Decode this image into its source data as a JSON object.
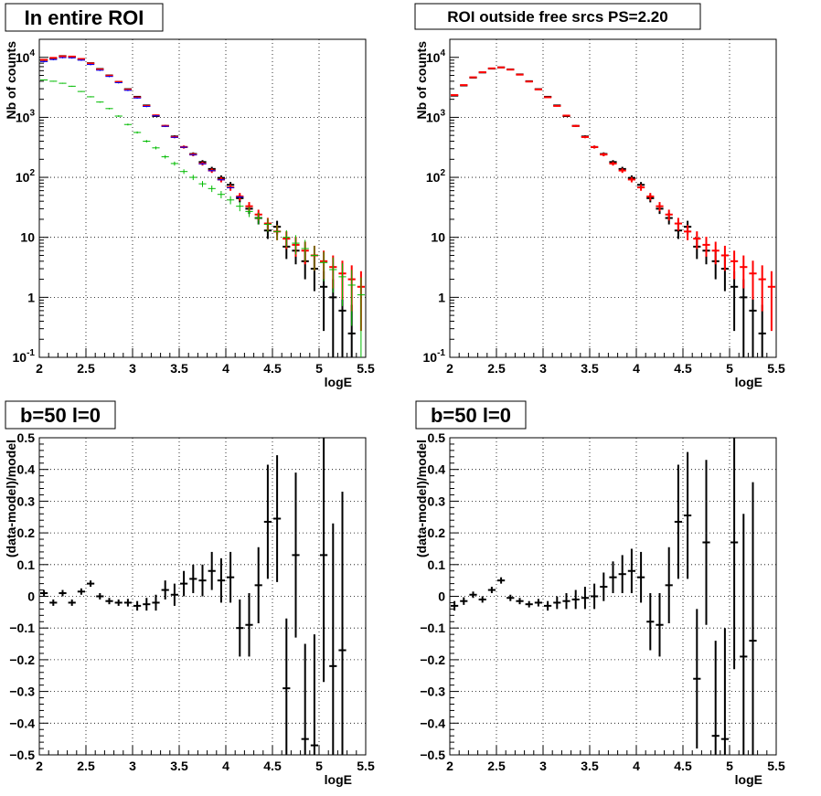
{
  "canvas": {
    "background": "#ffffff"
  },
  "colors": {
    "data": "#000000",
    "model_total": "#ff0000",
    "model_blue": "#0000ff",
    "model_green": "#00bb00"
  },
  "chart_data": [
    {
      "type": "histogram-errorbars",
      "title": "In entire ROI",
      "xlabel": "logE",
      "ylabel": "Nb of counts",
      "xlim": [
        2,
        5.5
      ],
      "ylim": [
        0.1,
        20000
      ],
      "yscale": "log",
      "grid": true,
      "xticks": [
        2,
        2.5,
        3,
        3.5,
        4,
        4.5,
        5,
        5.5
      ],
      "xtick_labels": [
        "2",
        "2.5",
        "3",
        "3.5",
        "4",
        "4.5",
        "5",
        "5.5"
      ],
      "yticks": [
        0.1,
        1,
        10,
        100,
        1000,
        10000
      ],
      "ytick_labels": [
        "10^-1",
        "1",
        "10",
        "10^2",
        "10^3",
        "10^4"
      ],
      "bin_width": 0.1,
      "series": [
        {
          "role": "data",
          "color": "#000000",
          "err_style": "poisson",
          "band": false,
          "x": [
            2.05,
            2.15,
            2.25,
            2.35,
            2.45,
            2.55,
            2.65,
            2.75,
            2.85,
            2.95,
            3.05,
            3.15,
            3.25,
            3.35,
            3.45,
            3.55,
            3.65,
            3.75,
            3.85,
            3.95,
            4.05,
            4.15,
            4.25,
            4.35,
            4.45,
            4.55,
            4.65,
            4.75,
            4.85,
            4.95,
            5.05,
            5.15,
            5.25,
            5.35
          ],
          "y": [
            9000,
            9600,
            10500,
            10200,
            9200,
            8000,
            6400,
            5000,
            3900,
            2950,
            2200,
            1580,
            1050,
            720,
            480,
            320,
            245,
            180,
            138,
            98,
            75,
            45,
            30,
            21,
            13,
            15,
            7,
            6,
            4,
            3,
            1.5,
            1,
            0.6,
            0.25
          ]
        },
        {
          "role": "model-total",
          "color": "#ff0000",
          "err_style": "poisson",
          "band": false,
          "x": [
            2.05,
            2.15,
            2.25,
            2.35,
            2.45,
            2.55,
            2.65,
            2.75,
            2.85,
            2.95,
            3.05,
            3.15,
            3.25,
            3.35,
            3.45,
            3.55,
            3.65,
            3.75,
            3.85,
            3.95,
            4.05,
            4.15,
            4.25,
            4.35,
            4.45,
            4.55,
            4.65,
            4.75,
            4.85,
            4.95,
            5.05,
            5.15,
            5.25,
            5.35,
            5.45
          ],
          "y": [
            9100,
            9800,
            10400,
            10300,
            9400,
            7900,
            6300,
            4950,
            3900,
            2900,
            2150,
            1550,
            1080,
            720,
            470,
            320,
            240,
            170,
            130,
            92,
            68,
            48,
            33,
            24,
            17,
            12.5,
            9.5,
            7.5,
            6,
            5,
            4,
            3.2,
            2.5,
            2,
            1.5
          ]
        },
        {
          "role": "model-blue",
          "color": "#0000ff",
          "err_style": "band",
          "band": true,
          "x": [
            2.05,
            2.15,
            2.25,
            2.35,
            2.45,
            2.55,
            2.65,
            2.75,
            2.85,
            2.95,
            3.05,
            3.15,
            3.25,
            3.35,
            3.45,
            3.55,
            3.65,
            3.75,
            3.85,
            3.95,
            4.05,
            4.15
          ],
          "y": [
            8500,
            9200,
            9900,
            9800,
            9000,
            7600,
            6100,
            4800,
            3780,
            2820,
            2100,
            1520,
            1060,
            710,
            465,
            318,
            238,
            168,
            129,
            91,
            67,
            47
          ]
        },
        {
          "role": "model-green",
          "color": "#00bb00",
          "err_style": "poisson",
          "band": false,
          "x": [
            2.05,
            2.15,
            2.25,
            2.35,
            2.45,
            2.55,
            2.65,
            2.75,
            2.85,
            2.95,
            3.05,
            3.15,
            3.25,
            3.35,
            3.45,
            3.55,
            3.65,
            3.75,
            3.85,
            3.95,
            4.05,
            4.15,
            4.25,
            4.35,
            4.45,
            4.55,
            4.65,
            4.75,
            4.85,
            4.95,
            5.05,
            5.15,
            5.25,
            5.35,
            5.45
          ],
          "y": [
            4200,
            4000,
            3700,
            3300,
            2700,
            2200,
            1800,
            1400,
            1050,
            760,
            560,
            400,
            310,
            220,
            170,
            125,
            100,
            78,
            65,
            52,
            42,
            33,
            27,
            21,
            16.5,
            12.5,
            10,
            8,
            6.5,
            5,
            3.8,
            2.9,
            2.2,
            1.6,
            1.1
          ]
        }
      ]
    },
    {
      "type": "histogram-errorbars",
      "title": "ROI outside free srcs PS=2.20",
      "xlabel": "logE",
      "ylabel": "Nb of counts",
      "xlim": [
        2,
        5.5
      ],
      "ylim": [
        0.1,
        20000
      ],
      "yscale": "log",
      "grid": true,
      "xticks": [
        2,
        2.5,
        3,
        3.5,
        4,
        4.5,
        5,
        5.5
      ],
      "xtick_labels": [
        "2",
        "2.5",
        "3",
        "3.5",
        "4",
        "4.5",
        "5",
        "5.5"
      ],
      "yticks": [
        0.1,
        1,
        10,
        100,
        1000,
        10000
      ],
      "ytick_labels": [
        "10^-1",
        "1",
        "10",
        "10^2",
        "10^3",
        "10^4"
      ],
      "bin_width": 0.1,
      "series": [
        {
          "role": "data",
          "color": "#000000",
          "err_style": "poisson",
          "band": false,
          "x": [
            2.05,
            2.15,
            2.25,
            2.35,
            2.45,
            2.55,
            2.65,
            2.75,
            2.85,
            2.95,
            3.05,
            3.15,
            3.25,
            3.35,
            3.45,
            3.55,
            3.65,
            3.75,
            3.85,
            3.95,
            4.05,
            4.15,
            4.25,
            4.35,
            4.45,
            4.55,
            4.65,
            4.75,
            4.85,
            4.95,
            5.05,
            5.15,
            5.25,
            5.35
          ],
          "y": [
            2300,
            3400,
            4600,
            5600,
            6500,
            6800,
            6300,
            5200,
            4000,
            2950,
            2200,
            1580,
            1050,
            720,
            480,
            320,
            245,
            180,
            138,
            98,
            75,
            45,
            30,
            21,
            13,
            15,
            7,
            6,
            4,
            3,
            1.5,
            1,
            0.6,
            0.25
          ]
        },
        {
          "role": "model-total",
          "color": "#ff0000",
          "err_style": "poisson",
          "band": false,
          "x": [
            2.05,
            2.15,
            2.25,
            2.35,
            2.45,
            2.55,
            2.65,
            2.75,
            2.85,
            2.95,
            3.05,
            3.15,
            3.25,
            3.35,
            3.45,
            3.55,
            3.65,
            3.75,
            3.85,
            3.95,
            4.05,
            4.15,
            4.25,
            4.35,
            4.45,
            4.55,
            4.65,
            4.75,
            4.85,
            4.95,
            5.05,
            5.15,
            5.25,
            5.35,
            5.45
          ],
          "y": [
            2350,
            3450,
            4650,
            5650,
            6550,
            6800,
            6250,
            5150,
            3950,
            2920,
            2160,
            1550,
            1070,
            720,
            470,
            320,
            240,
            170,
            130,
            92,
            68,
            48,
            33,
            24,
            17,
            12.5,
            9.5,
            7.5,
            6,
            5,
            4,
            3.2,
            2.5,
            2,
            1.5
          ]
        }
      ]
    },
    {
      "type": "histogram-errorbars",
      "title": "b=50 l=0",
      "xlabel": "logE",
      "ylabel": "(data-model)/model",
      "xlim": [
        2,
        5.5
      ],
      "ylim": [
        -0.5,
        0.5
      ],
      "yscale": "linear",
      "grid": true,
      "xticks": [
        2,
        2.5,
        3,
        3.5,
        4,
        4.5,
        5,
        5.5
      ],
      "xtick_labels": [
        "2",
        "2.5",
        "3",
        "3.5",
        "4",
        "4.5",
        "5",
        "5.5"
      ],
      "yticks": [
        -0.5,
        -0.4,
        -0.3,
        -0.2,
        -0.1,
        0,
        0.1,
        0.2,
        0.3,
        0.4,
        0.5
      ],
      "ytick_labels": [
        "−0.5",
        "−0.4",
        "−0.3",
        "−0.2",
        "−0.1",
        "0",
        "0.1",
        "0.2",
        "0.3",
        "0.4",
        "0.5"
      ],
      "bin_width": 0.1,
      "series": [
        {
          "role": "data",
          "color": "#000000",
          "x": [
            2.05,
            2.15,
            2.25,
            2.35,
            2.45,
            2.55,
            2.65,
            2.75,
            2.85,
            2.95,
            3.05,
            3.15,
            3.25,
            3.35,
            3.45,
            3.55,
            3.65,
            3.75,
            3.85,
            3.95,
            4.05,
            4.15,
            4.25,
            4.35,
            4.45,
            4.55,
            4.65,
            4.75,
            4.85,
            4.95,
            5.05,
            5.15,
            5.25
          ],
          "y": [
            0.01,
            -0.02,
            0.01,
            -0.02,
            0.015,
            0.04,
            0,
            -0.015,
            -0.02,
            -0.02,
            -0.03,
            -0.025,
            -0.02,
            0.02,
            0.005,
            0.04,
            0.055,
            0.05,
            0.08,
            0.05,
            0.06,
            -0.1,
            -0.09,
            0.035,
            0.235,
            0.245,
            -0.29,
            0.13,
            -0.45,
            -0.47,
            0.13,
            -0.22,
            -0.17
          ],
          "err": [
            0.01,
            0.01,
            0.01,
            0.01,
            0.01,
            0.01,
            0.01,
            0.01,
            0.01,
            0.012,
            0.015,
            0.02,
            0.025,
            0.03,
            0.035,
            0.04,
            0.045,
            0.05,
            0.06,
            0.07,
            0.08,
            0.09,
            0.1,
            0.12,
            0.18,
            0.2,
            0.22,
            0.26,
            0.3,
            0.35,
            0.4,
            0.45,
            0.5
          ]
        }
      ]
    },
    {
      "type": "histogram-errorbars",
      "title": "b=50 l=0",
      "xlabel": "logE",
      "ylabel": "(data-model)/model",
      "xlim": [
        2,
        5.5
      ],
      "ylim": [
        -0.5,
        0.5
      ],
      "yscale": "linear",
      "grid": true,
      "xticks": [
        2,
        2.5,
        3,
        3.5,
        4,
        4.5,
        5,
        5.5
      ],
      "xtick_labels": [
        "2",
        "2.5",
        "3",
        "3.5",
        "4",
        "4.5",
        "5",
        "5.5"
      ],
      "yticks": [
        -0.5,
        -0.4,
        -0.3,
        -0.2,
        -0.1,
        0,
        0.1,
        0.2,
        0.3,
        0.4,
        0.5
      ],
      "ytick_labels": [
        "−0.5",
        "−0.4",
        "−0.3",
        "−0.2",
        "−0.1",
        "0",
        "0.1",
        "0.2",
        "0.3",
        "0.4",
        "0.5"
      ],
      "bin_width": 0.1,
      "series": [
        {
          "role": "data",
          "color": "#000000",
          "x": [
            2.05,
            2.15,
            2.25,
            2.35,
            2.45,
            2.55,
            2.65,
            2.75,
            2.85,
            2.95,
            3.05,
            3.15,
            3.25,
            3.35,
            3.45,
            3.55,
            3.65,
            3.75,
            3.85,
            3.95,
            4.05,
            4.15,
            4.25,
            4.35,
            4.45,
            4.55,
            4.65,
            4.75,
            4.85,
            4.95,
            5.05,
            5.15,
            5.25
          ],
          "y": [
            -0.03,
            -0.015,
            0.005,
            -0.01,
            0.02,
            0.05,
            -0.005,
            -0.015,
            -0.025,
            -0.02,
            -0.03,
            -0.02,
            -0.015,
            -0.01,
            -0.005,
            0,
            0.03,
            0.06,
            0.07,
            0.08,
            0.06,
            -0.08,
            -0.09,
            0.035,
            0.235,
            0.255,
            -0.26,
            0.17,
            -0.44,
            -0.45,
            0.17,
            -0.19,
            -0.14
          ],
          "err": [
            0.015,
            0.012,
            0.01,
            0.01,
            0.01,
            0.01,
            0.01,
            0.01,
            0.01,
            0.012,
            0.015,
            0.02,
            0.025,
            0.03,
            0.035,
            0.04,
            0.045,
            0.05,
            0.06,
            0.07,
            0.08,
            0.09,
            0.1,
            0.12,
            0.18,
            0.2,
            0.22,
            0.26,
            0.3,
            0.35,
            0.4,
            0.45,
            0.5
          ]
        }
      ]
    }
  ]
}
